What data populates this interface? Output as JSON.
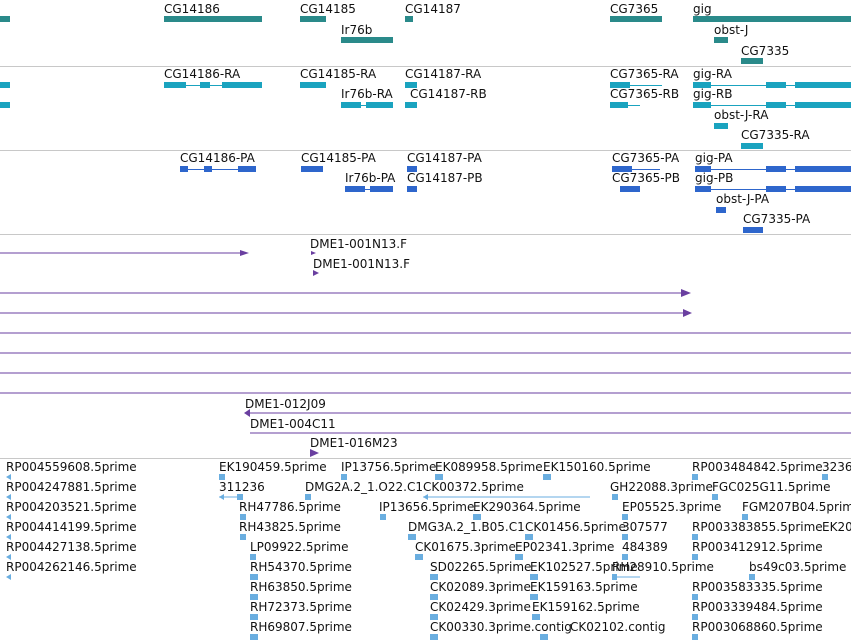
{
  "colors": {
    "gene": "#2a8a8a",
    "transcript": "#1aa3bf",
    "protein": "#2e66cc",
    "clone": "#6a3fa0",
    "est": "#6aaee0",
    "separator": "#c8c8c8"
  },
  "genes": [
    "CG14186",
    "CG14185",
    "Ir76b",
    "CG14187",
    "CG7365",
    "gig",
    "obst-J",
    "CG7335"
  ],
  "transcripts": [
    "CG14186-RA",
    "CG14185-RA",
    "Ir76b-RA",
    "CG14187-RA",
    "CG14187-RB",
    "CG7365-RA",
    "CG7365-RB",
    "gig-RA",
    "gig-RB",
    "obst-J-RA",
    "CG7335-RA"
  ],
  "proteins": [
    "CG14186-PA",
    "CG14185-PA",
    "Ir76b-PA",
    "CG14187-PA",
    "CG14187-PB",
    "CG7365-PA",
    "CG7365-PB",
    "gig-PA",
    "gig-PB",
    "obst-J-PA",
    "CG7335-PA"
  ],
  "clones": [
    "DME1-001N13.F",
    "DME1-001N13.F",
    "DME1-012J09",
    "DME1-004C11",
    "DME1-016M23"
  ],
  "ests": [
    "RP004559608.5prime",
    "RP004247881.5prime",
    "RP004203521.5prime",
    "RP004414199.5prime",
    "RP004427138.5prime",
    "RP004262146.5prime",
    "EK190459.5prime",
    "311236",
    "RH47786.5prime",
    "RH43825.5prime",
    "LP09922.5prime",
    "RH54370.5prime",
    "RH63850.5prime",
    "RH72373.5prime",
    "RH69807.5prime",
    "IP13756.5prime",
    "DMG2A.2_1.O22.C1",
    "IP13656.5prime",
    "DMG3A.2_1.B05.C1",
    "EK089958.5prime",
    "CK00372.5prime",
    "EK290364.5prime",
    "CK01456.5prime",
    "CK01675.3prime",
    "EP02341.3prime",
    "SD02265.5prime",
    "EK102527.5prime",
    "CK02089.3prime",
    "EK159163.5prime",
    "CK02429.3prime",
    "EK159162.5prime",
    "CK00330.3prime.contig",
    "CK02102.contig",
    "EK150160.5prime",
    "GH22088.3prime",
    "EP05525.3prime",
    "307577",
    "484389",
    "RH28910.5prime",
    "RP003484842.5prime",
    "3236",
    "FGC025G11.5prime",
    "FGM207B04.5prime",
    "RP003383855.5prime",
    "EK20",
    "RP003412912.5prime",
    "bs49c03.5prime",
    "RP003583335.5prime",
    "RP003339484.5prime",
    "RP003068860.5prime"
  ]
}
